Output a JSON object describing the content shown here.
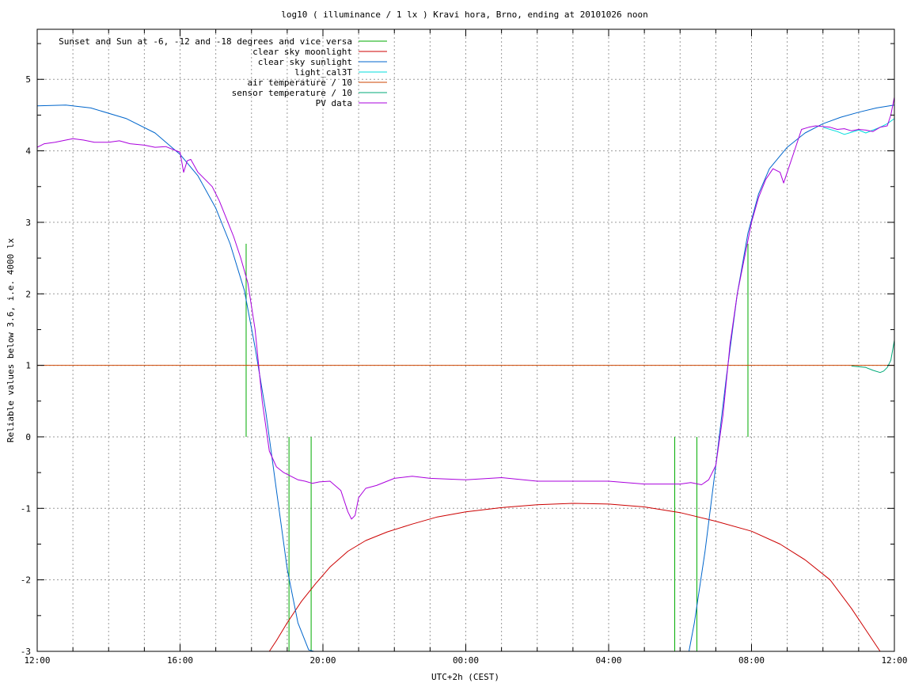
{
  "chart_data": {
    "type": "line",
    "title": "log10 ( illuminance / 1 lx ) Kravi hora, Brno, ending at 20101026 noon",
    "xlabel": "UTC+2h (CEST)",
    "ylabel": "Reliable values below 3.6, i.e. 4000 lx",
    "xlim": [
      12,
      36
    ],
    "ylim": [
      -3,
      5.7
    ],
    "x_ticks": [
      {
        "v": 12,
        "label": "12:00"
      },
      {
        "v": 16,
        "label": "16:00"
      },
      {
        "v": 20,
        "label": "20:00"
      },
      {
        "v": 24,
        "label": "00:00"
      },
      {
        "v": 28,
        "label": "04:00"
      },
      {
        "v": 32,
        "label": "08:00"
      },
      {
        "v": 36,
        "label": "12:00"
      }
    ],
    "y_ticks": [
      {
        "v": -3,
        "label": "-3"
      },
      {
        "v": -2,
        "label": "-2"
      },
      {
        "v": -1,
        "label": "-1"
      },
      {
        "v": 0,
        "label": "0"
      },
      {
        "v": 1,
        "label": "1"
      },
      {
        "v": 2,
        "label": "2"
      },
      {
        "v": 3,
        "label": "3"
      },
      {
        "v": 4,
        "label": "4"
      },
      {
        "v": 5,
        "label": "5"
      }
    ],
    "grid": true,
    "legend_position": "top-left",
    "series": [
      {
        "name": "Sunset and Sun at -6, -12 and -18 degrees and vice versa",
        "color": "#00aa00",
        "kind": "vlines",
        "lines": [
          {
            "x": 17.85,
            "y1": 0,
            "y2": 2.7
          },
          {
            "x": 19.05,
            "y1": -3,
            "y2": 0
          },
          {
            "x": 19.67,
            "y1": -3,
            "y2": 0
          },
          {
            "x": 29.85,
            "y1": -3,
            "y2": 0
          },
          {
            "x": 30.47,
            "y1": -3,
            "y2": 0
          },
          {
            "x": 31.9,
            "y1": 0,
            "y2": 2.7
          }
        ]
      },
      {
        "name": "clear sky moonlight",
        "color": "#cc0000",
        "x": [
          18.5,
          18.7,
          19.0,
          19.4,
          19.8,
          20.2,
          20.7,
          21.2,
          21.8,
          22.5,
          23.2,
          24.0,
          25.0,
          26.0,
          27.0,
          28.0,
          29.0,
          30.0,
          31.0,
          32.0,
          32.8,
          33.5,
          34.2,
          34.8,
          35.2,
          35.6
        ],
        "y": [
          -3.0,
          -2.85,
          -2.6,
          -2.3,
          -2.05,
          -1.82,
          -1.6,
          -1.45,
          -1.33,
          -1.22,
          -1.12,
          -1.05,
          -0.99,
          -0.95,
          -0.93,
          -0.94,
          -0.98,
          -1.06,
          -1.18,
          -1.32,
          -1.5,
          -1.72,
          -2.0,
          -2.4,
          -2.7,
          -3.0
        ]
      },
      {
        "name": "clear sky sunlight",
        "color": "#0066cc",
        "x": [
          12.0,
          12.8,
          13.5,
          14.5,
          15.3,
          16.0,
          16.5,
          17.0,
          17.4,
          17.8,
          18.1,
          18.4,
          18.7,
          19.0,
          19.3,
          19.6,
          19.75,
          30.25,
          30.4,
          30.7,
          31.0,
          31.3,
          31.6,
          31.9,
          32.2,
          32.5,
          33.0,
          33.5,
          34.0,
          34.5,
          35.0,
          35.5,
          36.0
        ],
        "y": [
          4.63,
          4.64,
          4.6,
          4.45,
          4.25,
          3.95,
          3.65,
          3.2,
          2.7,
          2.05,
          1.25,
          0.35,
          -0.75,
          -1.85,
          -2.6,
          -2.98,
          -3.0,
          -3.0,
          -2.6,
          -1.6,
          -0.4,
          0.85,
          2.0,
          2.85,
          3.4,
          3.75,
          4.05,
          4.25,
          4.38,
          4.47,
          4.54,
          4.6,
          4.64
        ]
      },
      {
        "name": "light_cal3T",
        "color": "#00dddd",
        "x": [
          34.0,
          34.2,
          34.4,
          34.6,
          34.8,
          35.0,
          35.2,
          35.4,
          35.6,
          35.8,
          36.0
        ],
        "y": [
          4.33,
          4.3,
          4.27,
          4.23,
          4.26,
          4.29,
          4.25,
          4.29,
          4.33,
          4.38,
          4.45
        ]
      },
      {
        "name": "air temperature / 10",
        "color": "#cc4400",
        "x": [
          12,
          36
        ],
        "y": [
          1.0,
          1.0
        ]
      },
      {
        "name": "sensor temperature / 10",
        "color": "#00aa77",
        "x": [
          34.8,
          35.0,
          35.2,
          35.4,
          35.6,
          35.7,
          35.8,
          35.9,
          36.0
        ],
        "y": [
          0.99,
          0.98,
          0.97,
          0.93,
          0.9,
          0.92,
          0.97,
          1.07,
          1.35
        ]
      },
      {
        "name": "PV data",
        "color": "#aa00dd",
        "x": [
          12.0,
          12.2,
          12.5,
          12.8,
          13.0,
          13.3,
          13.6,
          14.0,
          14.3,
          14.6,
          15.0,
          15.3,
          15.6,
          15.9,
          16.0,
          16.1,
          16.2,
          16.3,
          16.5,
          16.7,
          16.9,
          17.1,
          17.3,
          17.5,
          17.7,
          17.9,
          18.1,
          18.3,
          18.5,
          18.7,
          18.9,
          19.1,
          19.3,
          19.5,
          19.7,
          19.9,
          20.2,
          20.5,
          20.7,
          20.8,
          20.9,
          21.0,
          21.2,
          21.5,
          22.0,
          22.5,
          23.0,
          24.0,
          25.0,
          26.0,
          27.0,
          28.0,
          29.0,
          30.0,
          30.3,
          30.6,
          30.8,
          31.0,
          31.2,
          31.4,
          31.6,
          31.8,
          32.0,
          32.2,
          32.4,
          32.6,
          32.8,
          32.9,
          33.0,
          33.2,
          33.4,
          33.6,
          33.8,
          34.0,
          34.2,
          34.4,
          34.6,
          34.8,
          35.0,
          35.2,
          35.4,
          35.6,
          35.8,
          35.9,
          36.0
        ],
        "y": [
          4.05,
          4.1,
          4.12,
          4.15,
          4.17,
          4.15,
          4.12,
          4.12,
          4.14,
          4.1,
          4.08,
          4.05,
          4.06,
          4.0,
          3.98,
          3.7,
          3.86,
          3.88,
          3.7,
          3.6,
          3.5,
          3.3,
          3.05,
          2.8,
          2.5,
          2.15,
          1.5,
          0.5,
          -0.2,
          -0.42,
          -0.5,
          -0.55,
          -0.6,
          -0.62,
          -0.65,
          -0.63,
          -0.62,
          -0.75,
          -1.05,
          -1.15,
          -1.1,
          -0.85,
          -0.72,
          -0.68,
          -0.58,
          -0.55,
          -0.58,
          -0.6,
          -0.57,
          -0.62,
          -0.62,
          -0.62,
          -0.66,
          -0.66,
          -0.64,
          -0.67,
          -0.6,
          -0.4,
          0.3,
          1.3,
          2.0,
          2.5,
          3.0,
          3.35,
          3.6,
          3.75,
          3.7,
          3.55,
          3.7,
          4.0,
          4.3,
          4.33,
          4.35,
          4.34,
          4.33,
          4.3,
          4.31,
          4.28,
          4.3,
          4.29,
          4.27,
          4.33,
          4.35,
          4.5,
          4.75
        ]
      }
    ]
  }
}
